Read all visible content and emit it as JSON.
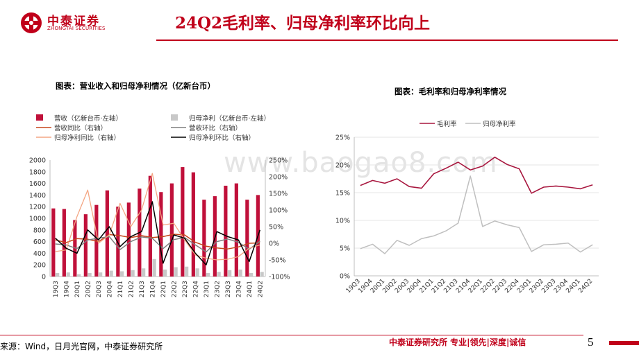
{
  "header": {
    "brand_cn": "中泰证券",
    "brand_en": "ZHONGTAI SECURITIES",
    "title": "24Q2毛利率、归母净利率环比向上"
  },
  "watermark": "www.baogao8.com",
  "footer": {
    "source": "来源：Wind，日月光官网，中泰证券研究所",
    "brand": "中泰证券研究所 专业|领先|深度|诚信",
    "page": "5"
  },
  "colors": {
    "brand_red": "#c0001a",
    "revenue_bar": "#c0103a",
    "profit_bar": "#c8c8c8",
    "revenue_yoy": "#c5461c",
    "revenue_qoq": "#7f7f7f",
    "profit_yoy": "#f4a683",
    "profit_qoq": "#000000",
    "gross_margin": "#a8163e",
    "net_margin": "#bfbfbf"
  },
  "chart_data": [
    {
      "type": "bar",
      "title": "图表：营业收入和归母净利情况（亿新台币）",
      "categories": [
        "19Q3",
        "19Q4",
        "20Q1",
        "20Q2",
        "20Q3",
        "20Q4",
        "21Q1",
        "21Q2",
        "21Q3",
        "21Q4",
        "22Q1",
        "22Q2",
        "22Q3",
        "22Q4",
        "23Q1",
        "23Q2",
        "23Q3",
        "23Q4",
        "24Q1",
        "24Q2"
      ],
      "left_axis": {
        "ylim": [
          0,
          2000
        ],
        "ticks": [
          "0",
          "200",
          "400",
          "600",
          "800",
          "1000",
          "1200",
          "1400",
          "1600",
          "1800",
          "2000"
        ]
      },
      "right_axis": {
        "ylim": [
          -100,
          250
        ],
        "ticks": [
          "-100%",
          "-50%",
          "0%",
          "50%",
          "100%",
          "150%",
          "200%",
          "250%"
        ]
      },
      "series": [
        {
          "name": "营收（亿新台币·左轴）",
          "kind": "bar",
          "axis": "left",
          "values": [
            1170,
            1160,
            970,
            1070,
            1230,
            1480,
            1200,
            1270,
            1510,
            1730,
            1450,
            1600,
            1880,
            1790,
            1320,
            1380,
            1560,
            1600,
            1320,
            1400
          ]
        },
        {
          "name": "归母净利（亿新台币·左轴）",
          "kind": "bar",
          "axis": "left",
          "values": [
            60,
            70,
            40,
            60,
            70,
            100,
            90,
            110,
            140,
            300,
            120,
            160,
            170,
            140,
            60,
            80,
            110,
            120,
            60,
            80
          ]
        },
        {
          "name": "营收同比（右轴）",
          "kind": "line",
          "axis": "right",
          "values": [
            10,
            2,
            14,
            12,
            5,
            26,
            23,
            17,
            23,
            17,
            20,
            27,
            25,
            3,
            -9,
            -14,
            -17,
            -11,
            0,
            1
          ]
        },
        {
          "name": "营收环比（右轴）",
          "kind": "line",
          "axis": "right",
          "values": [
            -2,
            -5,
            -16,
            10,
            15,
            20,
            -19,
            5,
            19,
            15,
            -16,
            11,
            17,
            -5,
            -26,
            5,
            13,
            3,
            -18,
            6
          ]
        },
        {
          "name": "归母净利同比（右轴）",
          "kind": "line",
          "axis": "right",
          "values": [
            -25,
            -20,
            80,
            160,
            0,
            25,
            120,
            50,
            100,
            210,
            55,
            60,
            10,
            -35,
            -45,
            -50,
            -48,
            -40,
            -15,
            -5
          ]
        },
        {
          "name": "归母净利环比（右轴）",
          "kind": "line",
          "axis": "right",
          "values": [
            15,
            -15,
            -30,
            40,
            10,
            50,
            -10,
            20,
            35,
            125,
            -60,
            25,
            15,
            -30,
            -65,
            35,
            20,
            10,
            -55,
            40
          ]
        }
      ]
    },
    {
      "type": "line",
      "title": "图表：毛利率和归母净利率情况",
      "categories": [
        "19Q3",
        "19Q4",
        "20Q1",
        "20Q2",
        "20Q3",
        "20Q4",
        "21Q1",
        "21Q2",
        "21Q3",
        "21Q4",
        "22Q1",
        "22Q2",
        "22Q3",
        "22Q4",
        "23Q1",
        "23Q2",
        "23Q3",
        "23Q4",
        "24Q1",
        "24Q2"
      ],
      "ylim": [
        0,
        25
      ],
      "ticks": [
        "0%",
        "5%",
        "10%",
        "15%",
        "20%",
        "25%"
      ],
      "series": [
        {
          "name": "毛利率",
          "values": [
            16.3,
            17.2,
            16.7,
            17.5,
            16.1,
            15.8,
            18.4,
            19.4,
            20.5,
            19.1,
            19.8,
            21.4,
            20.1,
            19.3,
            14.9,
            16.0,
            16.2,
            16.0,
            15.7,
            16.4
          ]
        },
        {
          "name": "归母净利率",
          "values": [
            4.9,
            5.7,
            4.0,
            6.4,
            5.5,
            6.7,
            7.2,
            8.1,
            9.5,
            18.0,
            8.9,
            9.9,
            9.2,
            8.7,
            4.4,
            5.6,
            5.7,
            5.9,
            4.3,
            5.6
          ]
        }
      ]
    }
  ]
}
